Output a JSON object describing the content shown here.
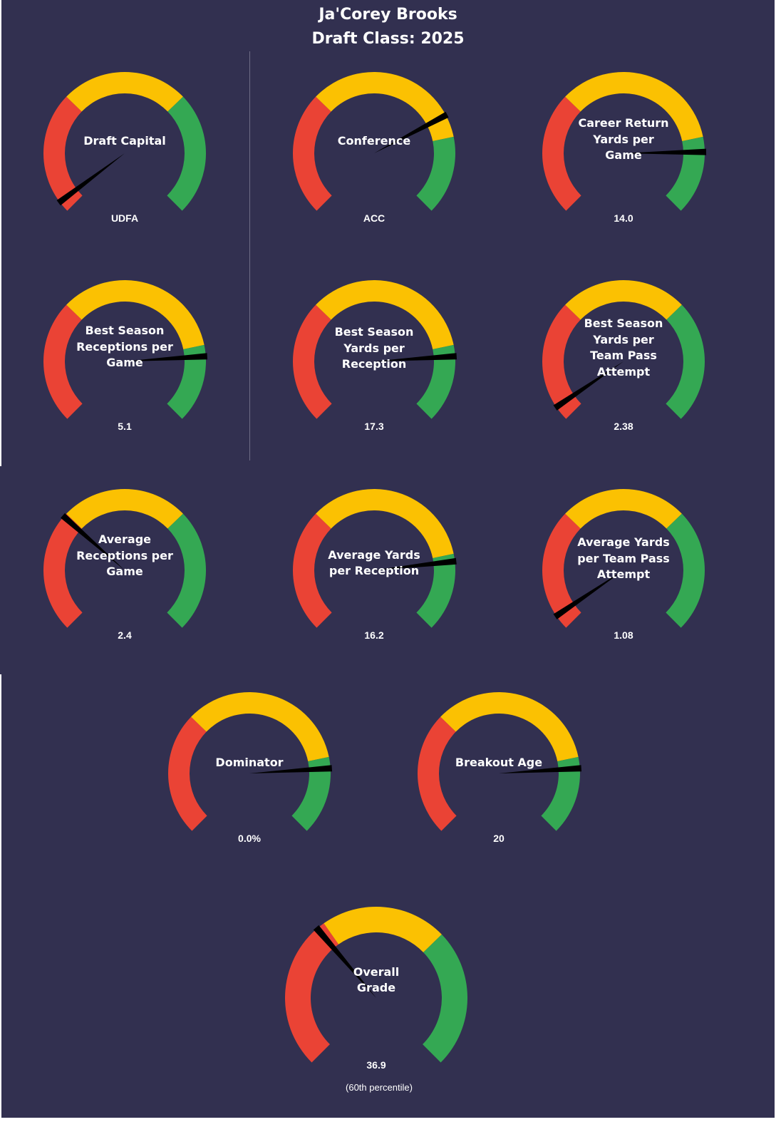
{
  "colors": {
    "background": "#323050",
    "red": "#ea4335",
    "yellow": "#fbc102",
    "green": "#34a853",
    "needle": "#000000"
  },
  "title": {
    "line1": "Ja'Corey Brooks",
    "line2": "Draft Class: 2025"
  },
  "chart_data": [
    {
      "type": "gauge",
      "title": "Draft Capital",
      "value_label": "UDFA",
      "needle_percentile": 3,
      "bands": {
        "red_end": 33,
        "yellow_end": 67
      }
    },
    {
      "type": "gauge",
      "title": "Conference",
      "value_label": "ACC",
      "needle_percentile": 73,
      "bands": {
        "red_end": 33,
        "yellow_end": 79
      }
    },
    {
      "type": "gauge",
      "title": "Career Return Yards per Game",
      "value_label": "14.0",
      "needle_percentile": 83,
      "bands": {
        "red_end": 33,
        "yellow_end": 79
      }
    },
    {
      "type": "gauge",
      "title": "Best Season Receptions per Game",
      "value_label": "5.1",
      "needle_percentile": 82,
      "bands": {
        "red_end": 33,
        "yellow_end": 79
      }
    },
    {
      "type": "gauge",
      "title": "Best Season Yards per Reception",
      "value_label": "17.3",
      "needle_percentile": 82,
      "bands": {
        "red_end": 33,
        "yellow_end": 79
      }
    },
    {
      "type": "gauge",
      "title": "Best Season Yards per Team Pass Attempt",
      "value_label": "2.38",
      "needle_percentile": 4,
      "bands": {
        "red_end": 33,
        "yellow_end": 67
      }
    },
    {
      "type": "gauge",
      "title": "Average Receptions per Game",
      "value_label": "2.4",
      "needle_percentile": 32,
      "bands": {
        "red_end": 33,
        "yellow_end": 67
      }
    },
    {
      "type": "gauge",
      "title": "Average Yards per Reception",
      "value_label": "16.2",
      "needle_percentile": 81,
      "bands": {
        "red_end": 33,
        "yellow_end": 79
      }
    },
    {
      "type": "gauge",
      "title": "Average Yards per Team Pass Attempt",
      "value_label": "1.08",
      "needle_percentile": 4,
      "bands": {
        "red_end": 33,
        "yellow_end": 67
      }
    },
    {
      "type": "gauge",
      "title": "Dominator",
      "value_label": "0.0%",
      "needle_percentile": 82,
      "bands": {
        "red_end": 33,
        "yellow_end": 79
      }
    },
    {
      "type": "gauge",
      "title": "Breakout Age",
      "value_label": "20",
      "needle_percentile": 82,
      "bands": {
        "red_end": 33,
        "yellow_end": 79
      }
    },
    {
      "type": "gauge",
      "title": "Overall Grade",
      "value_label": "36.9",
      "subtext": "(60th percentile)",
      "needle_percentile": 35,
      "bands": {
        "red_end": 37,
        "yellow_end": 67
      }
    }
  ]
}
